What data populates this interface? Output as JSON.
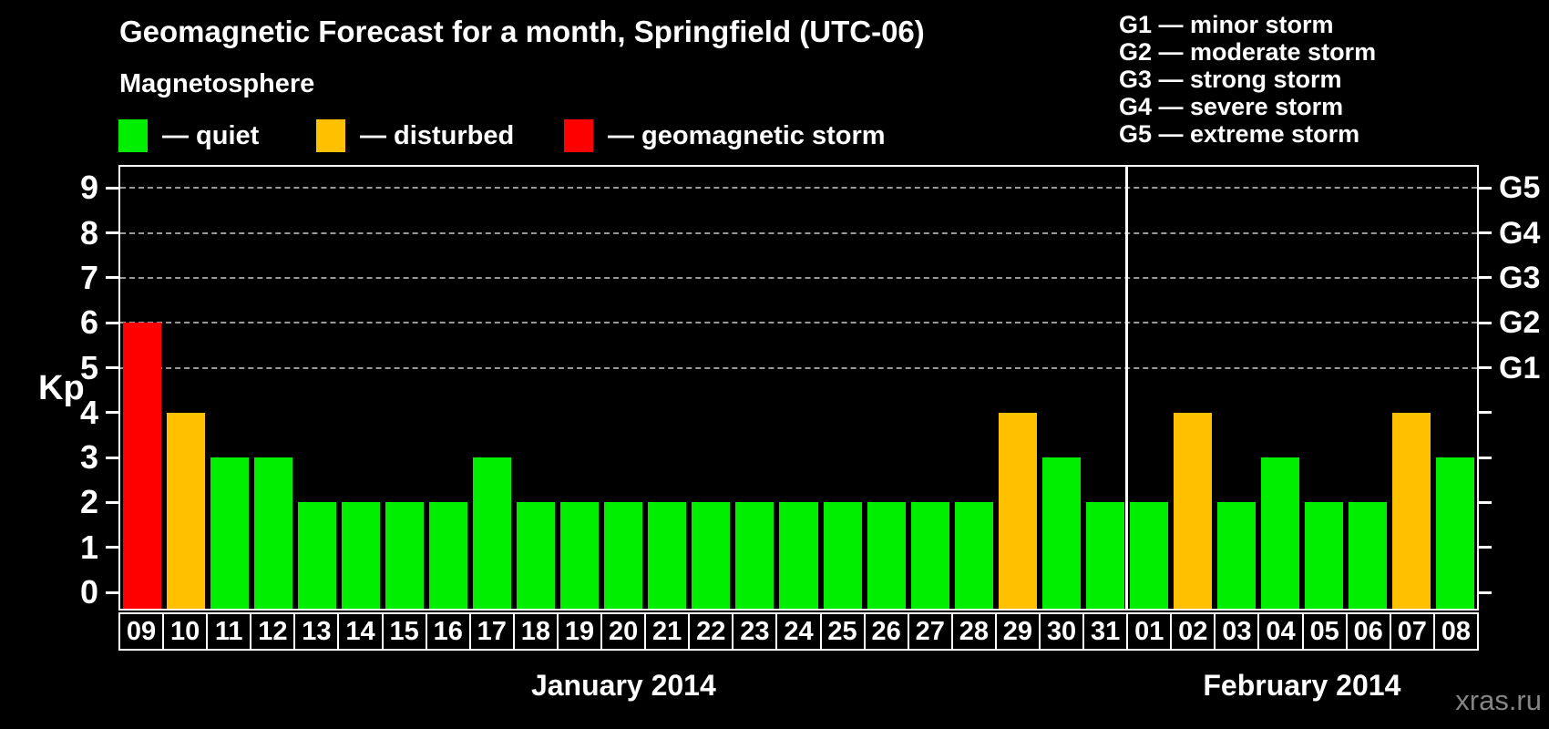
{
  "title": "Geomagnetic Forecast for a month, Springfield (UTC-06)",
  "magnetosphere_legend": {
    "heading": "Magnetosphere",
    "items": [
      {
        "status": "quiet",
        "label": "— quiet"
      },
      {
        "status": "disturbed",
        "label": "— disturbed"
      },
      {
        "status": "storm",
        "label": "— geomagnetic storm"
      }
    ]
  },
  "g_scale_legend": {
    "items": [
      "G1 — minor storm",
      "G2 — moderate storm",
      "G3 — strong storm",
      "G4 — severe storm",
      "G5 — extreme storm"
    ]
  },
  "y_axis": {
    "label": "Kp",
    "ticks": [
      "0",
      "1",
      "2",
      "3",
      "4",
      "5",
      "6",
      "7",
      "8",
      "9"
    ]
  },
  "right_axis": {
    "labels": [
      {
        "text": "G1",
        "kp": 5
      },
      {
        "text": "G2",
        "kp": 6
      },
      {
        "text": "G3",
        "kp": 7
      },
      {
        "text": "G4",
        "kp": 8
      },
      {
        "text": "G5",
        "kp": 9
      }
    ]
  },
  "months": [
    {
      "label": "January 2014",
      "days": 23
    },
    {
      "label": "February 2014",
      "days": 8
    }
  ],
  "watermark": "xras.ru",
  "colors": {
    "quiet": "#00EE00",
    "disturbed": "#FFC000",
    "storm": "#FF0000",
    "background": "#000000",
    "text": "#FFFFFF",
    "grid": "#999999",
    "watermark": "#858585"
  },
  "chart_data": {
    "type": "bar",
    "title": "Geomagnetic Forecast for a month, Springfield (UTC-06)",
    "ylabel": "Kp",
    "ylim": [
      0,
      9
    ],
    "grid_kp_levels": [
      5,
      6,
      7,
      8,
      9
    ],
    "g_scale": {
      "G1": 5,
      "G2": 6,
      "G3": 7,
      "G4": 8,
      "G5": 9
    },
    "categories": [
      "09",
      "10",
      "11",
      "12",
      "13",
      "14",
      "15",
      "16",
      "17",
      "18",
      "19",
      "20",
      "21",
      "22",
      "23",
      "24",
      "25",
      "26",
      "27",
      "28",
      "29",
      "30",
      "31",
      "01",
      "02",
      "03",
      "04",
      "05",
      "06",
      "07",
      "08"
    ],
    "values": [
      6,
      4,
      3,
      3,
      2,
      2,
      2,
      2,
      3,
      2,
      2,
      2,
      2,
      2,
      2,
      2,
      2,
      2,
      2,
      2,
      4,
      3,
      2,
      2,
      4,
      2,
      3,
      2,
      2,
      4,
      3
    ],
    "statuses": [
      "storm",
      "disturbed",
      "quiet",
      "quiet",
      "quiet",
      "quiet",
      "quiet",
      "quiet",
      "quiet",
      "quiet",
      "quiet",
      "quiet",
      "quiet",
      "quiet",
      "quiet",
      "quiet",
      "quiet",
      "quiet",
      "quiet",
      "quiet",
      "disturbed",
      "quiet",
      "quiet",
      "quiet",
      "disturbed",
      "quiet",
      "quiet",
      "quiet",
      "quiet",
      "disturbed",
      "quiet"
    ],
    "x_month_groups": [
      {
        "label": "January 2014",
        "count": 23
      },
      {
        "label": "February 2014",
        "count": 8
      }
    ]
  }
}
